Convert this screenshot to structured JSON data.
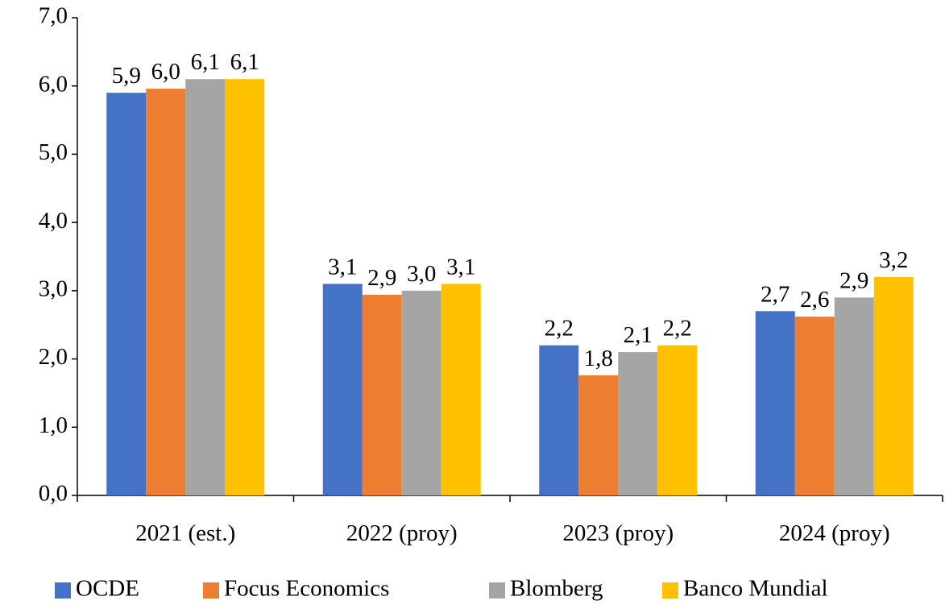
{
  "chart_data": {
    "type": "bar",
    "categories": [
      "2021 (est.)",
      "2022 (proy)",
      "2023 (proy)",
      "2024 (proy)"
    ],
    "series": [
      {
        "name": "OCDE",
        "color": "#4472c4",
        "values": [
          5.9,
          3.1,
          2.2,
          2.7
        ],
        "labels": [
          "5,9",
          "3,1",
          "2,2",
          "2,7"
        ]
      },
      {
        "name": "Focus Economics",
        "color": "#ed7d31",
        "values": [
          5.96,
          2.94,
          1.76,
          2.62
        ],
        "labels": [
          "6,0",
          "2,9",
          "1,8",
          "2,6"
        ]
      },
      {
        "name": "Blomberg",
        "color": "#a5a5a5",
        "values": [
          6.1,
          3.0,
          2.1,
          2.9
        ],
        "labels": [
          "6,1",
          "3,0",
          "2,1",
          "2,9"
        ]
      },
      {
        "name": "Banco Mundial",
        "color": "#ffc000",
        "values": [
          6.1,
          3.1,
          2.2,
          3.2
        ],
        "labels": [
          "6,1",
          "3,1",
          "2,2",
          "3,2"
        ]
      }
    ],
    "ylim": [
      0,
      7
    ],
    "yticks": [
      {
        "value": 0,
        "label": "0,0"
      },
      {
        "value": 1,
        "label": "1,0"
      },
      {
        "value": 2,
        "label": "2,0"
      },
      {
        "value": 3,
        "label": "3,0"
      },
      {
        "value": 4,
        "label": "4,0"
      },
      {
        "value": 5,
        "label": "5,0"
      },
      {
        "value": 6,
        "label": "6,0"
      },
      {
        "value": 7,
        "label": "7,0"
      }
    ],
    "title": "",
    "xlabel": "",
    "ylabel": "",
    "grid": false,
    "legend_position": "bottom"
  }
}
